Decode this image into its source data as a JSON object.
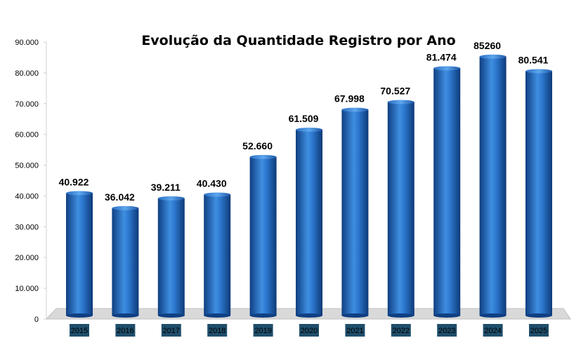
{
  "chart_data": {
    "type": "bar",
    "title": "Evolução da Quantidade Registro por Ano",
    "categories": [
      "2015",
      "2016",
      "2017",
      "2018",
      "2019",
      "2020",
      "2021",
      "2022",
      "2023",
      "2024",
      "2025"
    ],
    "values": [
      40922,
      36042,
      39211,
      40430,
      52660,
      61509,
      67998,
      70527,
      81474,
      85260,
      80541
    ],
    "data_labels": [
      "40.922",
      "36.042",
      "39.211",
      "40.430",
      "52.660",
      "61.509",
      "67.998",
      "70.527",
      "81.474",
      "85260",
      "80.541"
    ],
    "ylim": [
      0,
      90000
    ],
    "y_ticks": [
      0,
      10000,
      20000,
      30000,
      40000,
      50000,
      60000,
      70000,
      80000,
      90000
    ],
    "y_tick_labels": [
      "0",
      "10.000",
      "20.000",
      "30.000",
      "40.000",
      "50.000",
      "60.000",
      "70.000",
      "80.000",
      "90.000"
    ],
    "xlabel": "",
    "ylabel": "",
    "grid": false,
    "legend": "none",
    "colors": {
      "bar_dark": "#0f3f82",
      "bar_mid": "#1c63c0",
      "bar_light": "#4d9ae8",
      "floor": "#d9d9d9",
      "category_label_bg": "#1f4e6b"
    }
  }
}
